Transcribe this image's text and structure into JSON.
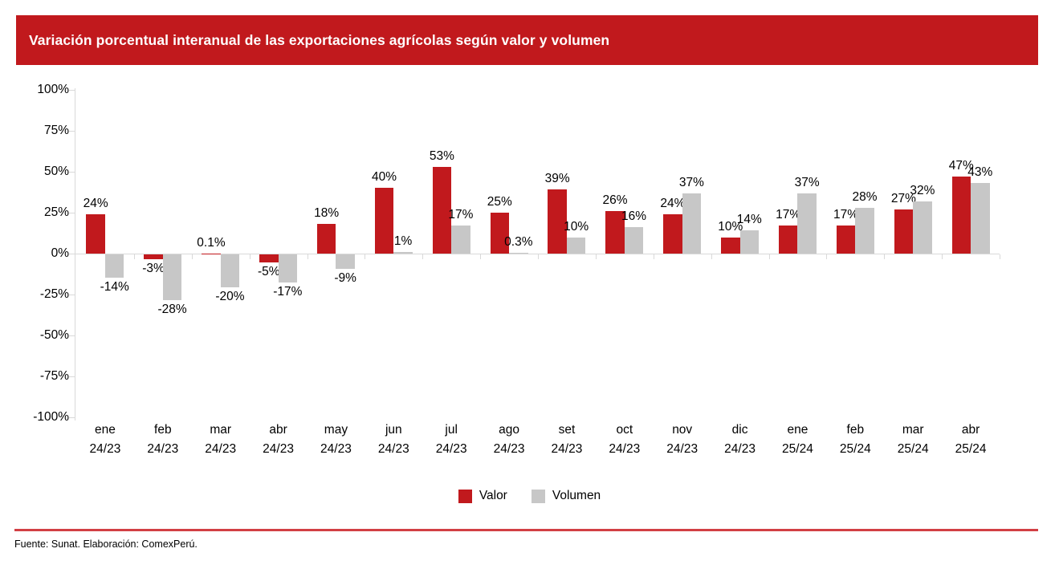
{
  "page": {
    "title": "Variación porcentual interanual de las exportaciones agrícolas según valor y volumen",
    "footer": "Fuente: Sunat. Elaboración: ComexPerú."
  },
  "colors": {
    "header_band": "#c1191d",
    "valor_bar": "#c1191d",
    "volumen_bar": "#c7c7c7",
    "axis_line": "#d9d9d9",
    "footer_divider": "#d23f44",
    "title_text": "#ffffff",
    "label_text": "#000000"
  },
  "legend": {
    "items": [
      {
        "label": "Valor",
        "color": "#c1191d"
      },
      {
        "label": "Volumen",
        "color": "#c7c7c7"
      }
    ]
  },
  "chart_data": {
    "type": "bar",
    "title": "Variación porcentual interanual de las exportaciones agrícolas según valor y volumen",
    "xlabel": "",
    "ylabel": "",
    "grid": false,
    "legend_position": "bottom",
    "categories": [
      {
        "month": "ene",
        "period": "24/23"
      },
      {
        "month": "feb",
        "period": "24/23"
      },
      {
        "month": "mar",
        "period": "24/23"
      },
      {
        "month": "abr",
        "period": "24/23"
      },
      {
        "month": "may",
        "period": "24/23"
      },
      {
        "month": "jun",
        "period": "24/23"
      },
      {
        "month": "jul",
        "period": "24/23"
      },
      {
        "month": "ago",
        "period": "24/23"
      },
      {
        "month": "set",
        "period": "24/23"
      },
      {
        "month": "oct",
        "period": "24/23"
      },
      {
        "month": "nov",
        "period": "24/23"
      },
      {
        "month": "dic",
        "period": "24/23"
      },
      {
        "month": "ene",
        "period": "25/24"
      },
      {
        "month": "feb",
        "period": "25/24"
      },
      {
        "month": "mar",
        "period": "25/24"
      },
      {
        "month": "abr",
        "period": "25/24"
      }
    ],
    "series": [
      {
        "name": "Valor",
        "color": "#c1191d",
        "values": [
          24,
          -3,
          0.1,
          -5,
          18,
          40,
          53,
          25,
          39,
          26,
          24,
          10,
          17,
          17,
          27,
          47
        ],
        "labels": [
          "24%",
          "-3%",
          "0.1%",
          "-5%",
          "18%",
          "40%",
          "53%",
          "25%",
          "39%",
          "26%",
          "24%",
          "10%",
          "17%",
          "17%",
          "27%",
          "47%"
        ]
      },
      {
        "name": "Volumen",
        "color": "#c7c7c7",
        "values": [
          -14,
          -28,
          -20,
          -17,
          -9,
          1,
          17,
          0.3,
          10,
          16,
          37,
          14,
          37,
          28,
          32,
          43
        ],
        "labels": [
          "-14%",
          "-28%",
          "-20%",
          "-17%",
          "-9%",
          "1%",
          "17%",
          "0.3%",
          "10%",
          "16%",
          "37%",
          "14%",
          "37%",
          "28%",
          "32%",
          "43%"
        ]
      }
    ],
    "y_axis": {
      "min": -100,
      "max": 100,
      "tick_step": 25,
      "ticks": [
        100,
        75,
        50,
        25,
        0,
        -25,
        -50,
        -75,
        -100
      ],
      "tick_labels": [
        "100%",
        "75%",
        "50%",
        "25%",
        "0%",
        "-25%",
        "-50%",
        "-75%",
        "-100%"
      ]
    }
  }
}
